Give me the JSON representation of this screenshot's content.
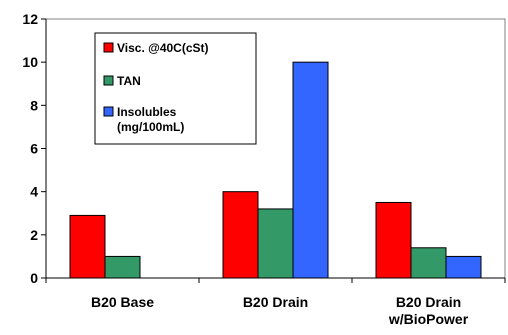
{
  "chart_data": {
    "type": "bar",
    "title": "",
    "xlabel": "",
    "ylabel": "",
    "categories": [
      [
        "B20 Base"
      ],
      [
        "B20 Drain"
      ],
      [
        "B20 Drain",
        "w/BioPower"
      ]
    ],
    "series": [
      {
        "name": "Visc. @40C(cSt)",
        "color": "#ff0000",
        "values": [
          2.9,
          4.0,
          3.5
        ]
      },
      {
        "name": "TAN",
        "color": "#339966",
        "values": [
          1.0,
          3.2,
          1.4
        ]
      },
      {
        "name": "Insolubles (mg/100mL)",
        "legend_lines": [
          "Insolubles",
          "(mg/100mL)"
        ],
        "color": "#3366ff",
        "values": [
          null,
          10.0,
          1.0
        ]
      }
    ],
    "ylim": [
      0,
      12
    ],
    "yticks": [
      0,
      2,
      4,
      6,
      8,
      10,
      12
    ],
    "grid": false,
    "legend_position": "top-left"
  }
}
